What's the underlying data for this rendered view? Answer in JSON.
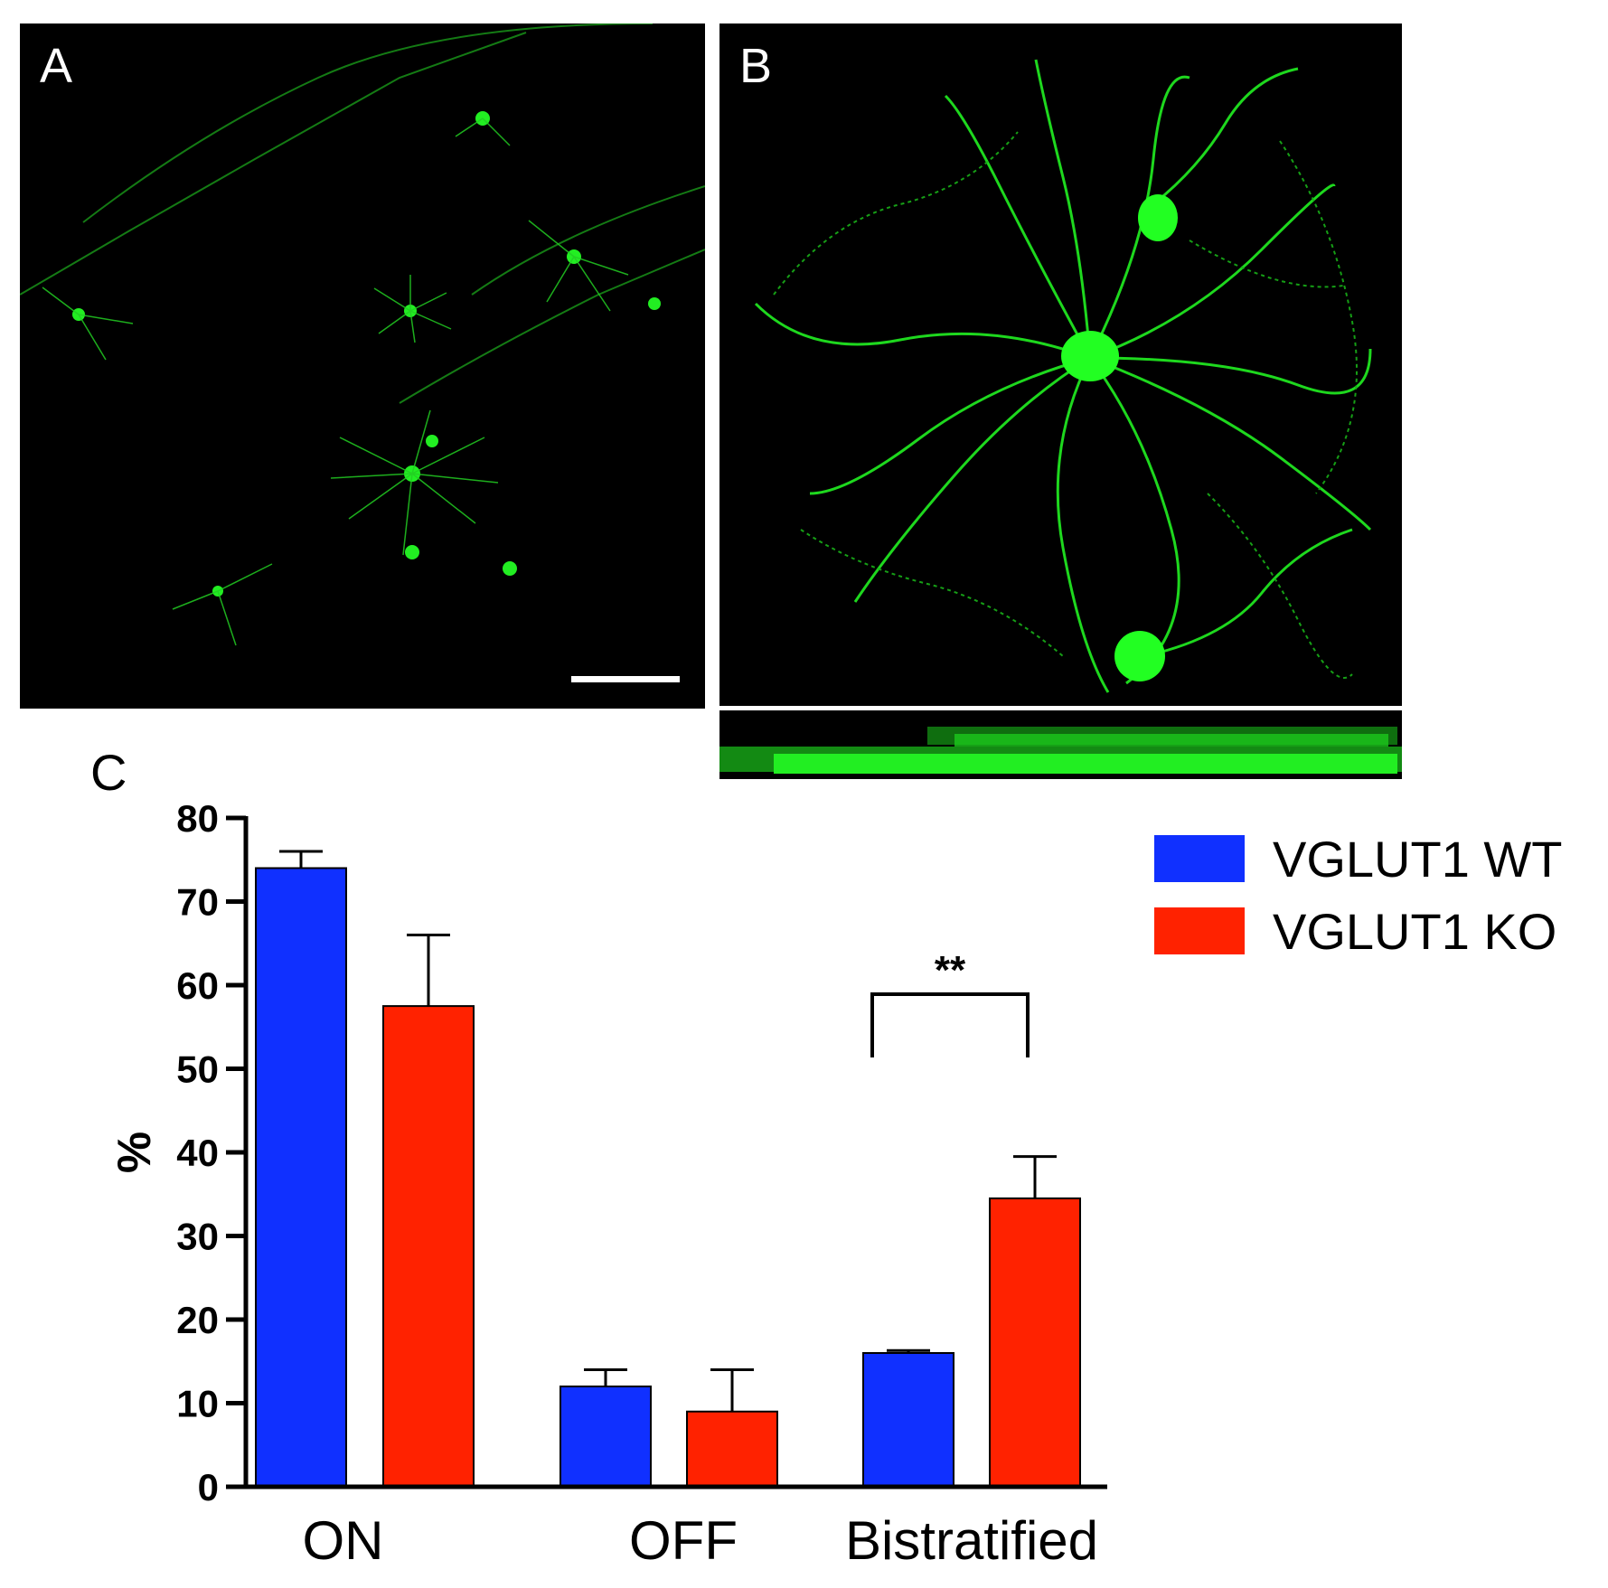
{
  "panels": {
    "a": {
      "letter": "A"
    },
    "b": {
      "letter": "B"
    },
    "c": {
      "letter": "C"
    }
  },
  "colors": {
    "wt": "#1030ff",
    "ko": "#ff2200",
    "cells": "#22ee22"
  },
  "chart_data": {
    "type": "bar",
    "categories": [
      "ON",
      "OFF",
      "Bistratified"
    ],
    "series": [
      {
        "name": "VGLUT1 WT",
        "values": [
          74,
          12,
          16
        ],
        "errors": [
          2,
          2,
          0.3
        ]
      },
      {
        "name": "VGLUT1 KO",
        "values": [
          57.5,
          9,
          34.5
        ],
        "errors": [
          8.5,
          5,
          5
        ]
      }
    ],
    "ylabel": "%",
    "xlabel": "",
    "ylim": [
      0,
      80
    ],
    "yticks": [
      "0",
      "10",
      "20",
      "30",
      "40",
      "50",
      "60",
      "70",
      "80"
    ],
    "legend": "top-right",
    "annotations": [
      {
        "text": "**",
        "between": "Bistratified"
      }
    ],
    "grid": false
  }
}
